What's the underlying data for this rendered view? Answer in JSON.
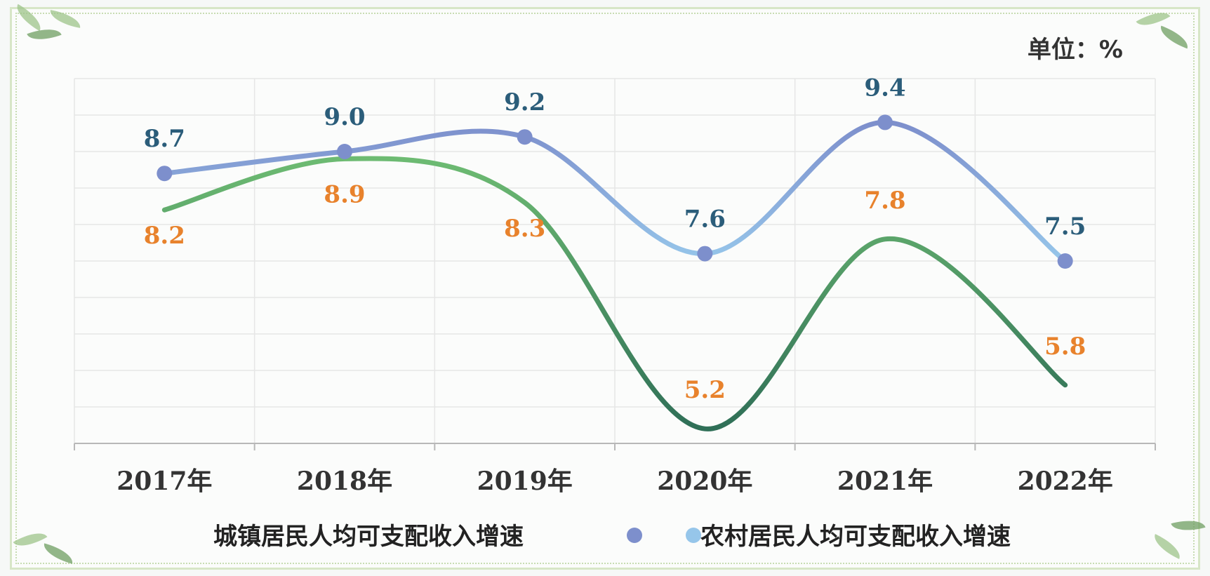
{
  "unit_label": "单位：%",
  "colors": {
    "urban_line_start": "#6dbb72",
    "urban_line_end": "#2f6f57",
    "rural_line_start": "#7d8fcc",
    "rural_line_end": "#96c6ea",
    "urban_label": "#e8822c",
    "rural_label": "#2b5d7a",
    "grid": "#e6e6e6",
    "axis": "#b8b8b8"
  },
  "chart_data": {
    "type": "line",
    "categories": [
      "2017年",
      "2018年",
      "2019年",
      "2020年",
      "2021年",
      "2022年"
    ],
    "series": [
      {
        "name": "城镇居民人均可支配收入增速",
        "values": [
          8.2,
          8.9,
          8.3,
          5.2,
          7.8,
          5.8
        ],
        "markers": false
      },
      {
        "name": "农村居民人均可支配收入增速",
        "values": [
          8.7,
          9.0,
          9.2,
          7.6,
          9.4,
          7.5
        ],
        "markers": true
      }
    ],
    "ylim": [
      5.0,
      10.0
    ],
    "grid": true,
    "legend_position": "bottom",
    "data_labels": true
  }
}
